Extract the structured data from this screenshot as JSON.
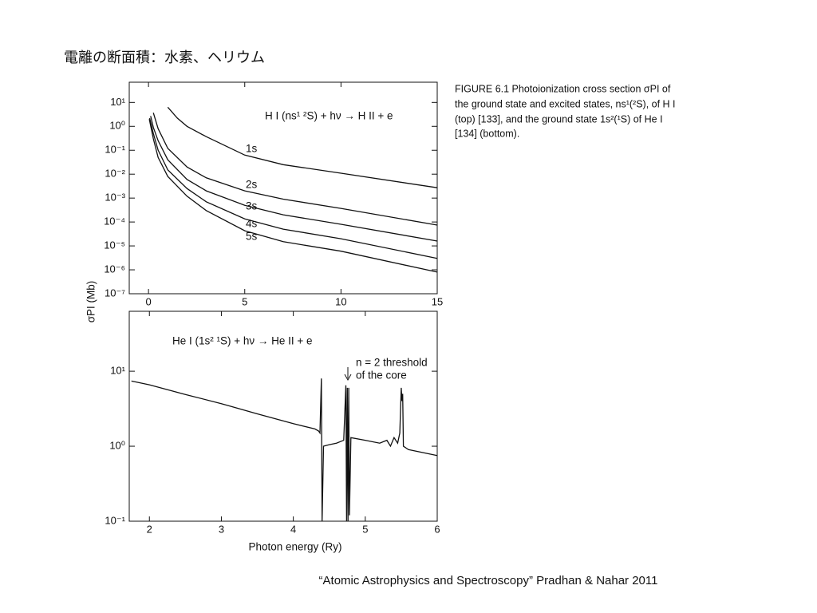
{
  "slide": {
    "title": "電離の断面積：水素、ヘリウム",
    "caption": [
      "FIGURE 6.1  Photoionization cross section σPI of",
      "the ground state and excited states, ns¹(²S), of H I",
      "(top) [133], and the ground state 1s²(¹S) of He I",
      "[134] (bottom)."
    ],
    "citation": "“Atomic Astrophysics and Spectroscopy” Pradhan & Nahar 2011"
  },
  "chart_data": [
    {
      "type": "line",
      "log_y": true,
      "ylabel": "σPI (Mb)",
      "xlim": [
        -1,
        15
      ],
      "xticks": [
        0,
        5,
        10,
        15
      ],
      "ylim": [
        1e-07,
        70
      ],
      "yticks": [
        {
          "value": 10,
          "label": "10¹"
        },
        {
          "value": 1,
          "label": "10⁰"
        },
        {
          "value": 0.1,
          "label": "10⁻¹"
        },
        {
          "value": 0.01,
          "label": "10⁻²"
        },
        {
          "value": 0.001,
          "label": "10⁻³"
        },
        {
          "value": 0.0001,
          "label": "10⁻⁴"
        },
        {
          "value": 1e-05,
          "label": "10⁻⁵"
        },
        {
          "value": 1e-06,
          "label": "10⁻⁶"
        },
        {
          "value": 1e-07,
          "label": "10⁻⁷"
        }
      ],
      "annotations": [
        {
          "text": "H I (ns¹ ²S) + hν → H II + e"
        }
      ],
      "series": [
        {
          "name": "1s",
          "color": "#111",
          "x": [
            1,
            1.5,
            2,
            3,
            5,
            7,
            10,
            15
          ],
          "values": [
            6.3,
            2.2,
            1.0,
            0.37,
            0.063,
            0.025,
            0.011,
            0.0027
          ]
        },
        {
          "name": "2s",
          "color": "#111",
          "x": [
            0.25,
            0.5,
            1,
            2,
            3,
            5,
            7,
            10,
            15
          ],
          "values": [
            3.7,
            0.8,
            0.12,
            0.02,
            0.007,
            0.002,
            0.0009,
            0.00037,
            7.4e-05
          ]
        },
        {
          "name": "3s",
          "color": "#111",
          "x": [
            0.111,
            0.25,
            0.5,
            1,
            2,
            3,
            5,
            7,
            10,
            15
          ],
          "values": [
            2.7,
            0.9,
            0.25,
            0.04,
            0.006,
            0.002,
            0.0005,
            0.0002,
            8e-05,
            1.6e-05
          ]
        },
        {
          "name": "4s",
          "color": "#111",
          "x": [
            0.0625,
            0.25,
            0.5,
            1,
            2,
            3,
            5,
            7,
            10,
            15
          ],
          "values": [
            2.2,
            0.5,
            0.1,
            0.015,
            0.0025,
            0.0007,
            0.000135,
            5e-05,
            2e-05,
            3e-06
          ]
        },
        {
          "name": "5s",
          "color": "#111",
          "x": [
            0.04,
            0.25,
            0.5,
            1,
            2,
            3,
            5,
            7,
            10,
            15
          ],
          "values": [
            2.0,
            0.3,
            0.05,
            0.008,
            0.0012,
            0.0003,
            4.3e-05,
            1.5e-05,
            6e-06,
            8e-07
          ]
        }
      ]
    },
    {
      "type": "line",
      "log_y": true,
      "xlabel": "Photon energy (Ry)",
      "xlim": [
        1.72,
        6
      ],
      "xticks": [
        2,
        3,
        4,
        5,
        6
      ],
      "ylim": [
        0.1,
        63
      ],
      "yticks": [
        {
          "value": 10,
          "label": "10¹"
        },
        {
          "value": 1,
          "label": "10⁰"
        },
        {
          "value": 0.1,
          "label": "10⁻¹"
        }
      ],
      "annotations": [
        {
          "text": "He I (1s² ¹S) + hν → He II + e"
        },
        {
          "text": "n = 2 threshold"
        },
        {
          "text": "of the core"
        }
      ],
      "series": [
        {
          "name": "He I",
          "color": "#111",
          "x": [
            1.75,
            2,
            2.5,
            3,
            3.5,
            4,
            4.3,
            4.35,
            4.37,
            4.39,
            4.4,
            4.42,
            4.5,
            4.6,
            4.7,
            4.73,
            4.74,
            4.75,
            4.76,
            4.77,
            4.78,
            4.8,
            5.0,
            5.2,
            5.3,
            5.35,
            5.4,
            5.45,
            5.48,
            5.5,
            5.51,
            5.52,
            5.53,
            5.6,
            6
          ],
          "values": [
            7.4,
            6.6,
            4.9,
            3.7,
            2.7,
            2.0,
            1.7,
            1.6,
            1.5,
            8,
            0.1,
            1.0,
            1.05,
            1.1,
            1.2,
            6.5,
            0.1,
            6,
            0.1,
            6,
            0.12,
            1.3,
            1.2,
            1.1,
            1.2,
            1.0,
            1.3,
            1.1,
            1.5,
            6,
            4,
            5,
            1.0,
            0.9,
            0.75
          ]
        }
      ]
    }
  ]
}
